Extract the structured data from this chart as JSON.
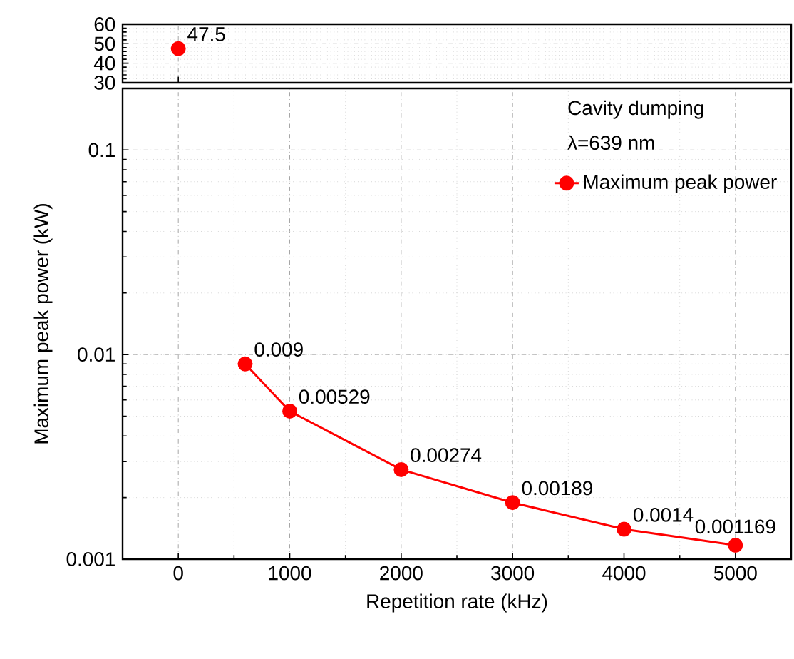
{
  "chart_data": [
    {
      "type": "line",
      "xlim": [
        -500,
        5500
      ],
      "ylim": [
        30,
        60
      ],
      "yticks": [
        30,
        40,
        50,
        60
      ],
      "tick_labels": "y",
      "grid": true,
      "marker": "circle",
      "line_style": "solid",
      "data_labels": true,
      "series": [
        {
          "color": "#ff0000",
          "x": [
            0
          ],
          "values": [
            47.5
          ]
        }
      ]
    },
    {
      "type": "line",
      "xlabel": "Repetition rate (kHz)",
      "ylabel": "Maximum peak power (kW)",
      "log": "y",
      "xlim": [
        -500,
        5500
      ],
      "ylim": [
        0.001,
        0.2
      ],
      "xticks": [
        0,
        1000,
        2000,
        3000,
        4000,
        5000
      ],
      "yticks": [
        0.001,
        0.01,
        0.1
      ],
      "grid": true,
      "marker": "circle",
      "line_style": "solid",
      "data_labels": true,
      "legend": "top right",
      "annotations": [
        "Cavity dumping",
        "λ=639 nm"
      ],
      "series": [
        {
          "name": "Maximum peak power",
          "color": "#ff0000",
          "x": [
            600,
            1000,
            2000,
            3000,
            4000,
            5000
          ],
          "values": [
            0.009,
            0.00529,
            0.00274,
            0.00189,
            0.0014,
            0.001169
          ]
        }
      ]
    }
  ]
}
